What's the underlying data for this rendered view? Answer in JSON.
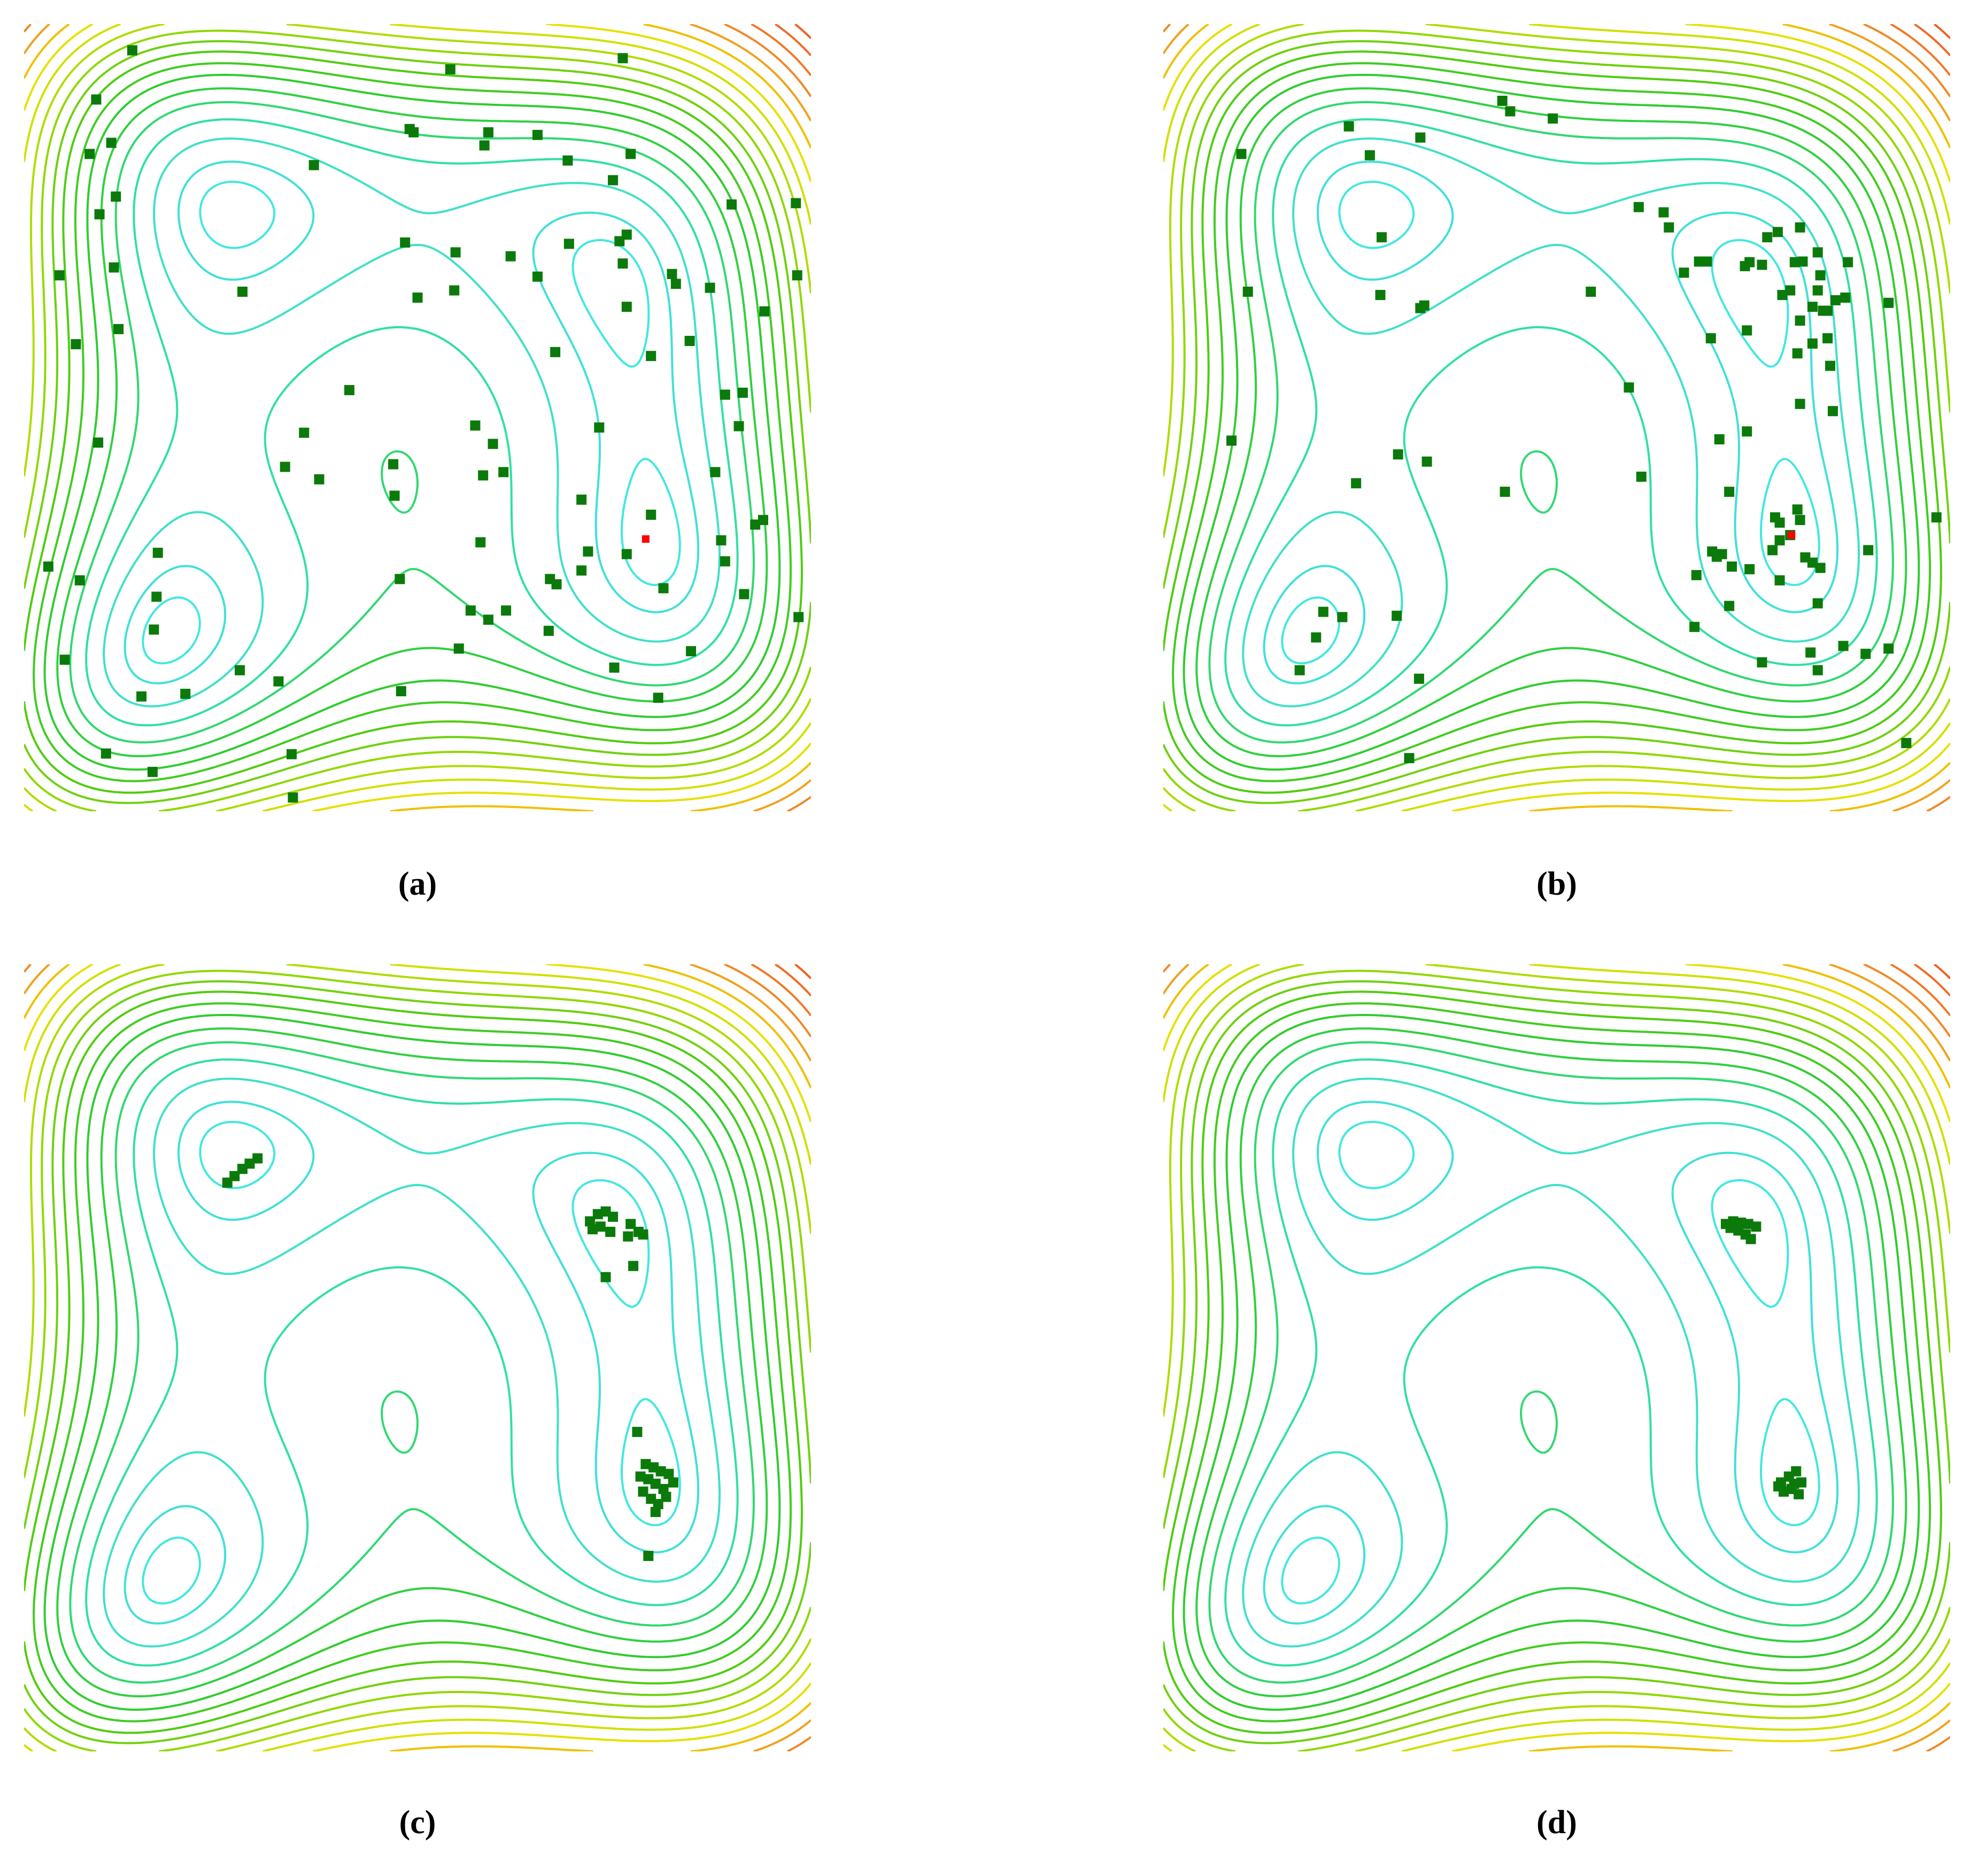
{
  "chart_data": [
    {
      "type": "scatter",
      "caption": "(a)",
      "xlim": [
        -6,
        6
      ],
      "ylim": [
        -6,
        6
      ],
      "contour_levels": [
        10,
        30,
        70,
        120,
        180,
        240,
        310,
        380,
        460,
        540,
        630,
        730,
        840,
        960,
        1100,
        1250,
        1420,
        1600,
        1800,
        2000
      ],
      "contour_colors": [
        "#40e8e0",
        "#40e0d8",
        "#40e0c8",
        "#30e0a0",
        "#30d870",
        "#30d040",
        "#30cc30",
        "#40cc20",
        "#50cc10",
        "#70d010",
        "#90d800",
        "#b0dc00",
        "#d0e000",
        "#e8e000",
        "#f0c000",
        "#f0a020",
        "#f08828",
        "#f07828",
        "#f06a28",
        "#f06020"
      ],
      "series": [
        {
          "color": "#0b7a0b",
          "x": [
            -4.35,
            0.5,
            3.13,
            -4.9,
            -0.12,
            -0.06,
            1.08,
            1.83,
            1.02,
            -5.0,
            -4.67,
            3.25,
            2.29,
            -1.58,
            -4.6,
            2.98,
            -4.85,
            4.79,
            5.77,
            -0.19,
            0.58,
            1.42,
            2.31,
            3.19,
            3.08,
            3.13,
            1.83,
            -4.63,
            -5.46,
            -2.67,
            3.88,
            3.94,
            4.46,
            5.79,
            0,
            0.56,
            3.19,
            5.29,
            -4.56,
            -5.21,
            4.15,
            2.1,
            3.56,
            -1.04,
            4.69,
            4.96,
            0.88,
            2.77,
            -1.73,
            4.9,
            1.15,
            -4.87,
            -0.37,
            -2.02,
            1.0,
            1.31,
            -1.5,
            4.54,
            -0.35,
            2.5,
            3.56,
            5.27,
            5.15,
            -5.63,
            -5.15,
            -3.96,
            0.96,
            2.6,
            3.19,
            4.63,
            4.69,
            -0.27,
            2.02,
            2.12,
            2.5,
            3.75,
            4.98,
            -3.98,
            0.81,
            1.08,
            1.35,
            -4.02,
            2.0,
            0.63,
            4.17,
            -5.38,
            -2.71,
            3.0,
            -2.12,
            -4.21,
            -3.54,
            -0.25,
            3.67,
            -4.75,
            -1.92,
            -4.04,
            -1.9,
            5.81
          ],
          "values": [
            5.6,
            5.31,
            5.48,
            4.85,
            4.4,
            4.35,
            4.35,
            4.31,
            4.15,
            4.02,
            4.19,
            4.02,
            3.92,
            3.85,
            3.37,
            3.62,
            3.1,
            3.25,
            3.27,
            2.67,
            2.52,
            2.46,
            2.65,
            2.79,
            2.69,
            2.35,
            2.15,
            2.29,
            2.17,
            1.92,
            2.19,
            2.04,
            1.98,
            2.17,
            1.83,
            1.94,
            1.69,
            1.62,
            1.35,
            1.12,
            1.17,
            1.0,
            0.94,
            0.42,
            0.35,
            0.38,
            -0.12,
            -0.15,
            -0.23,
            -0.13,
            -0.4,
            -0.38,
            -0.71,
            -0.75,
            -0.88,
            -0.83,
            -0.94,
            -0.83,
            -1.19,
            -1.25,
            -1.48,
            -1.56,
            -1.63,
            -2.27,
            -2.48,
            -2.06,
            -1.9,
            -2.04,
            -2.08,
            -1.87,
            -2.19,
            -2.46,
            -2.46,
            -2.54,
            -2.33,
            -2.6,
            -2.69,
            -2.73,
            -2.94,
            -3.08,
            -2.94,
            -3.23,
            -3.25,
            -3.52,
            -3.56,
            -3.69,
            -3.85,
            -3.81,
            -4.02,
            -4.25,
            -4.21,
            -4.17,
            -4.27,
            -5.12,
            -5.13,
            -5.4,
            -5.79,
            -3.04
          ]
        },
        {
          "color": "#ff0000",
          "x": [
            3.48
          ],
          "values": [
            -1.85
          ]
        }
      ]
    },
    {
      "type": "scatter",
      "caption": "(b)",
      "xlim": [
        -6,
        6
      ],
      "ylim": [
        -6,
        6
      ],
      "contour_levels": [
        10,
        30,
        70,
        120,
        180,
        240,
        310,
        380,
        460,
        540,
        630,
        730,
        840,
        960,
        1100,
        1250,
        1420,
        1600,
        1800,
        2000
      ],
      "contour_colors": [
        "#40e8e0",
        "#40e0d8",
        "#40e0c8",
        "#30e0a0",
        "#30d870",
        "#30d040",
        "#30cc30",
        "#40cc20",
        "#50cc10",
        "#70d010",
        "#90d800",
        "#b0dc00",
        "#d0e000",
        "#e8e000",
        "#f0c000",
        "#f0a020",
        "#f08828",
        "#f07828",
        "#f06a28",
        "#f06020"
      ],
      "series": [
        {
          "color": "#0b7a0b",
          "x": [
            -0.83,
            -0.71,
            -0.06,
            -3.17,
            -2.08,
            -2.85,
            -4.81,
            1.25,
            1.63,
            1.71,
            2.17,
            1.94,
            2.29,
            2.87,
            2.94,
            3.21,
            3.37,
            3.71,
            3.98,
            3.13,
            3.63,
            3.75,
            4.02,
            4.44,
            3.44,
            3.56,
            3.98,
            4.06,
            4.25,
            3.9,
            4.13,
            4.4,
            3.71,
            3.9,
            4.13,
            -2.67,
            -2.69,
            -2.08,
            -2.02,
            0.52,
            5.06,
            -4.71,
            2.35,
            2.9,
            3.67,
            4.17,
            1.1,
            3.71,
            4.21,
            2.48,
            2.9,
            -2.42,
            -1.98,
            -4.96,
            -3.06,
            -0.79,
            1.29,
            2.63,
            3.33,
            3.4,
            3.67,
            3.71,
            3.56,
            3.29,
            3.4,
            2.37,
            2.44,
            2.52,
            2.67,
            2.94,
            3.79,
            3.9,
            4.02,
            4.75,
            2.13,
            3.4,
            5.79,
            2.63,
            3.98,
            -3.56,
            -3.27,
            -3.67,
            -2.44,
            2.1,
            -3.92,
            -2.1,
            3.13,
            3.87,
            3.98,
            4.37,
            4.71,
            5.06,
            -2.25,
            5.33
          ],
          "values": [
            4.83,
            4.67,
            4.56,
            4.44,
            4.27,
            4.0,
            4.02,
            3.21,
            3.13,
            2.9,
            2.38,
            2.21,
            2.38,
            2.31,
            2.37,
            2.75,
            2.83,
            2.9,
            2.52,
            2.33,
            2.37,
            2.38,
            2.17,
            2.37,
            1.87,
            1.94,
            1.94,
            1.63,
            1.79,
            1.69,
            1.63,
            1.83,
            1.48,
            1.13,
            1.21,
            2.75,
            1.87,
            1.67,
            1.71,
            1.92,
            1.75,
            1.92,
            1.21,
            1.33,
            0.98,
            0.79,
            0.46,
            0.21,
            0.1,
            -0.33,
            -0.21,
            -0.56,
            -0.67,
            -0.35,
            -1.0,
            -1.13,
            -0.9,
            -1.13,
            -1.52,
            -1.6,
            -1.4,
            -1.56,
            -1.79,
            -2.02,
            -1.87,
            -2.04,
            -2.12,
            -2.08,
            -2.27,
            -2.31,
            -2.13,
            -2.21,
            -2.29,
            -2.02,
            -2.4,
            -2.48,
            -1.52,
            -2.87,
            -2.83,
            -2.96,
            -3.04,
            -3.35,
            -3.02,
            -3.19,
            -3.85,
            -3.98,
            -3.73,
            -3.58,
            -3.85,
            -3.48,
            -3.6,
            -3.52,
            -5.19,
            -4.96
          ]
        },
        {
          "color": "#ff0000",
          "x": [
            3.58
          ],
          "values": [
            -1.79
          ]
        }
      ]
    },
    {
      "type": "scatter",
      "caption": "(c)",
      "xlim": [
        -6,
        6
      ],
      "ylim": [
        -6,
        6
      ],
      "contour_levels": [
        10,
        30,
        70,
        120,
        180,
        240,
        310,
        380,
        460,
        540,
        630,
        730,
        840,
        960,
        1100,
        1250,
        1420,
        1600,
        1800,
        2000
      ],
      "contour_colors": [
        "#40e8e0",
        "#40e0d8",
        "#40e0c8",
        "#30e0a0",
        "#30d870",
        "#30d040",
        "#30cc30",
        "#40cc20",
        "#50cc10",
        "#70d010",
        "#90d800",
        "#b0dc00",
        "#d0e000",
        "#e8e000",
        "#f0c000",
        "#f0a020",
        "#f08828",
        "#f07828",
        "#f06a28",
        "#f06020"
      ],
      "series": [
        {
          "color": "#0b7a0b",
          "x": [
            -2.9,
            -2.79,
            -2.67,
            -2.56,
            -2.44,
            2.63,
            2.75,
            2.87,
            2.98,
            2.79,
            2.94,
            2.67,
            3.25,
            3.37,
            3.21,
            3.44,
            3.29,
            2.87,
            3.35,
            3.48,
            3.6,
            3.71,
            3.83,
            3.52,
            3.63,
            3.75,
            3.44,
            3.56,
            3.67,
            3.79,
            3.9,
            3.4,
            3.63,
            3.52
          ],
          "values": [
            2.67,
            2.77,
            2.88,
            2.96,
            3.04,
            2.08,
            2.19,
            2.23,
            2.15,
            2.0,
            1.92,
            1.96,
            2.04,
            1.92,
            1.85,
            1.88,
            1.4,
            1.23,
            -1.13,
            -1.62,
            -1.67,
            -1.73,
            -1.77,
            -1.85,
            -1.92,
            -2.0,
            -2.04,
            -2.15,
            -2.23,
            -2.12,
            -1.9,
            -1.81,
            -2.35,
            -3.02
          ]
        }
      ]
    },
    {
      "type": "scatter",
      "caption": "(d)",
      "xlim": [
        -6,
        6
      ],
      "ylim": [
        -6,
        6
      ],
      "contour_levels": [
        10,
        30,
        70,
        120,
        180,
        240,
        310,
        380,
        460,
        540,
        630,
        730,
        840,
        960,
        1100,
        1250,
        1420,
        1600,
        1800,
        2000
      ],
      "contour_colors": [
        "#40e8e0",
        "#40e0d8",
        "#40e0c8",
        "#30e0a0",
        "#30d870",
        "#30d040",
        "#30cc30",
        "#40cc20",
        "#50cc10",
        "#70d010",
        "#90d800",
        "#b0dc00",
        "#d0e000",
        "#e8e000",
        "#f0c000",
        "#f0a020",
        "#f08828",
        "#f07828",
        "#f06a28",
        "#f06020"
      ],
      "series": [
        {
          "color": "#0b7a0b",
          "x": [
            2.58,
            2.69,
            2.81,
            2.92,
            3.04,
            2.77,
            2.88,
            2.96,
            2.65,
            3.42,
            3.54,
            3.65,
            3.73,
            3.58,
            3.46,
            3.69,
            3.38,
            3.62
          ],
          "values": [
            2.04,
            2.08,
            2.06,
            2.04,
            2.0,
            1.94,
            1.88,
            1.81,
            1.98,
            -1.9,
            -1.81,
            -1.73,
            -1.9,
            -2.0,
            -2.04,
            -2.08,
            -1.96,
            -1.92
          ]
        }
      ]
    }
  ]
}
